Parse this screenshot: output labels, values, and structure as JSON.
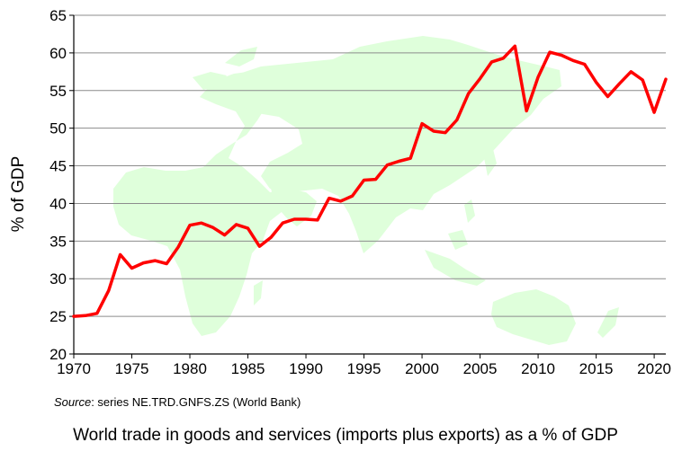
{
  "chart_data": {
    "type": "line",
    "ylabel": "% of GDP",
    "xlim": [
      1970,
      2021
    ],
    "ylim": [
      20,
      65
    ],
    "x_ticks": [
      1970,
      1975,
      1980,
      1985,
      1990,
      1995,
      2000,
      2005,
      2010,
      2015,
      2020
    ],
    "y_ticks": [
      20,
      25,
      30,
      35,
      40,
      45,
      50,
      55,
      60,
      65
    ],
    "grid": true,
    "line_color": "#ff0000",
    "series": [
      {
        "name": "World trade (% of GDP)",
        "x": [
          1970,
          1971,
          1972,
          1973,
          1974,
          1975,
          1976,
          1977,
          1978,
          1979,
          1980,
          1981,
          1982,
          1983,
          1984,
          1985,
          1986,
          1987,
          1988,
          1989,
          1990,
          1991,
          1992,
          1993,
          1994,
          1995,
          1996,
          1997,
          1998,
          1999,
          2000,
          2001,
          2002,
          2003,
          2004,
          2005,
          2006,
          2007,
          2008,
          2009,
          2010,
          2011,
          2012,
          2013,
          2014,
          2015,
          2016,
          2017,
          2018,
          2019,
          2020,
          2021
        ],
        "values": [
          25.0,
          25.1,
          25.4,
          28.4,
          33.2,
          31.4,
          32.1,
          32.4,
          32.0,
          34.2,
          37.1,
          37.4,
          36.8,
          35.8,
          37.2,
          36.7,
          34.3,
          35.5,
          37.4,
          37.9,
          37.9,
          37.8,
          40.7,
          40.3,
          41.0,
          43.1,
          43.2,
          45.1,
          45.6,
          46.0,
          50.6,
          49.6,
          49.4,
          51.1,
          54.6,
          56.6,
          58.8,
          59.3,
          60.9,
          52.3,
          56.8,
          60.1,
          59.7,
          59.0,
          58.5,
          56.1,
          54.2,
          55.9,
          57.5,
          56.4,
          52.1,
          56.5
        ]
      }
    ]
  },
  "source": {
    "label": "Source",
    "text": ": series NE.TRD.GNFS.ZS  (World Bank)"
  },
  "caption": "World trade in goods and services (imports plus exports) as a % of GDP",
  "colors": {
    "line": "#ff0000",
    "map": "#dfffdb",
    "grid": "#8c8c8c",
    "background": "#ffffff"
  }
}
